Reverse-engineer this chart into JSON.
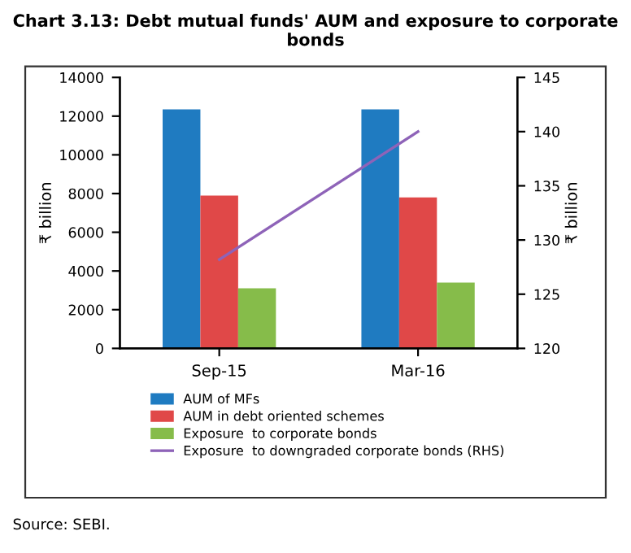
{
  "chart_data": {
    "type": "bar",
    "title": "Chart 3.13: Debt mutual funds' AUM and exposure to corporate bonds",
    "categories": [
      "Sep-15",
      "Mar-16"
    ],
    "series": [
      {
        "name": "AUM of MFs",
        "color": "#1f7bc1",
        "values": [
          12350,
          12350
        ]
      },
      {
        "name": "AUM in debt oriented schemes",
        "color": "#e04848",
        "values": [
          7900,
          7800
        ]
      },
      {
        "name": "Exposure  to corporate bonds",
        "color": "#86bc4a",
        "values": [
          3100,
          3400
        ]
      },
      {
        "name": "Exposure  to downgraded corporate bonds (RHS)",
        "type": "line",
        "axis": "y2",
        "color": "#8e63b8",
        "values": [
          128.2,
          140
        ]
      }
    ],
    "ylabel": "₹ billion",
    "y2label": "₹ billion",
    "ylim": [
      0,
      14000
    ],
    "yticks": [
      0,
      2000,
      4000,
      6000,
      8000,
      10000,
      12000,
      14000
    ],
    "y2lim": [
      120,
      145
    ],
    "y2ticks": [
      120,
      125,
      130,
      135,
      140,
      145
    ],
    "grid": false,
    "legend": "bottom",
    "annotations": [
      "Source: SEBI."
    ]
  }
}
